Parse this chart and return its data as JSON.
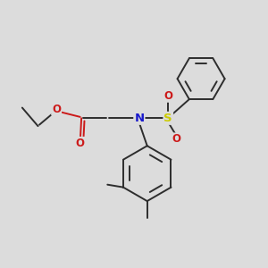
{
  "background_color": "#dcdcdc",
  "bond_color": "#2d2d2d",
  "N_color": "#1a1acc",
  "O_color": "#cc1a1a",
  "S_color": "#cccc00",
  "figsize": [
    3.0,
    3.0
  ],
  "dpi": 100,
  "xlim": [
    0,
    10
  ],
  "ylim": [
    0,
    10
  ]
}
